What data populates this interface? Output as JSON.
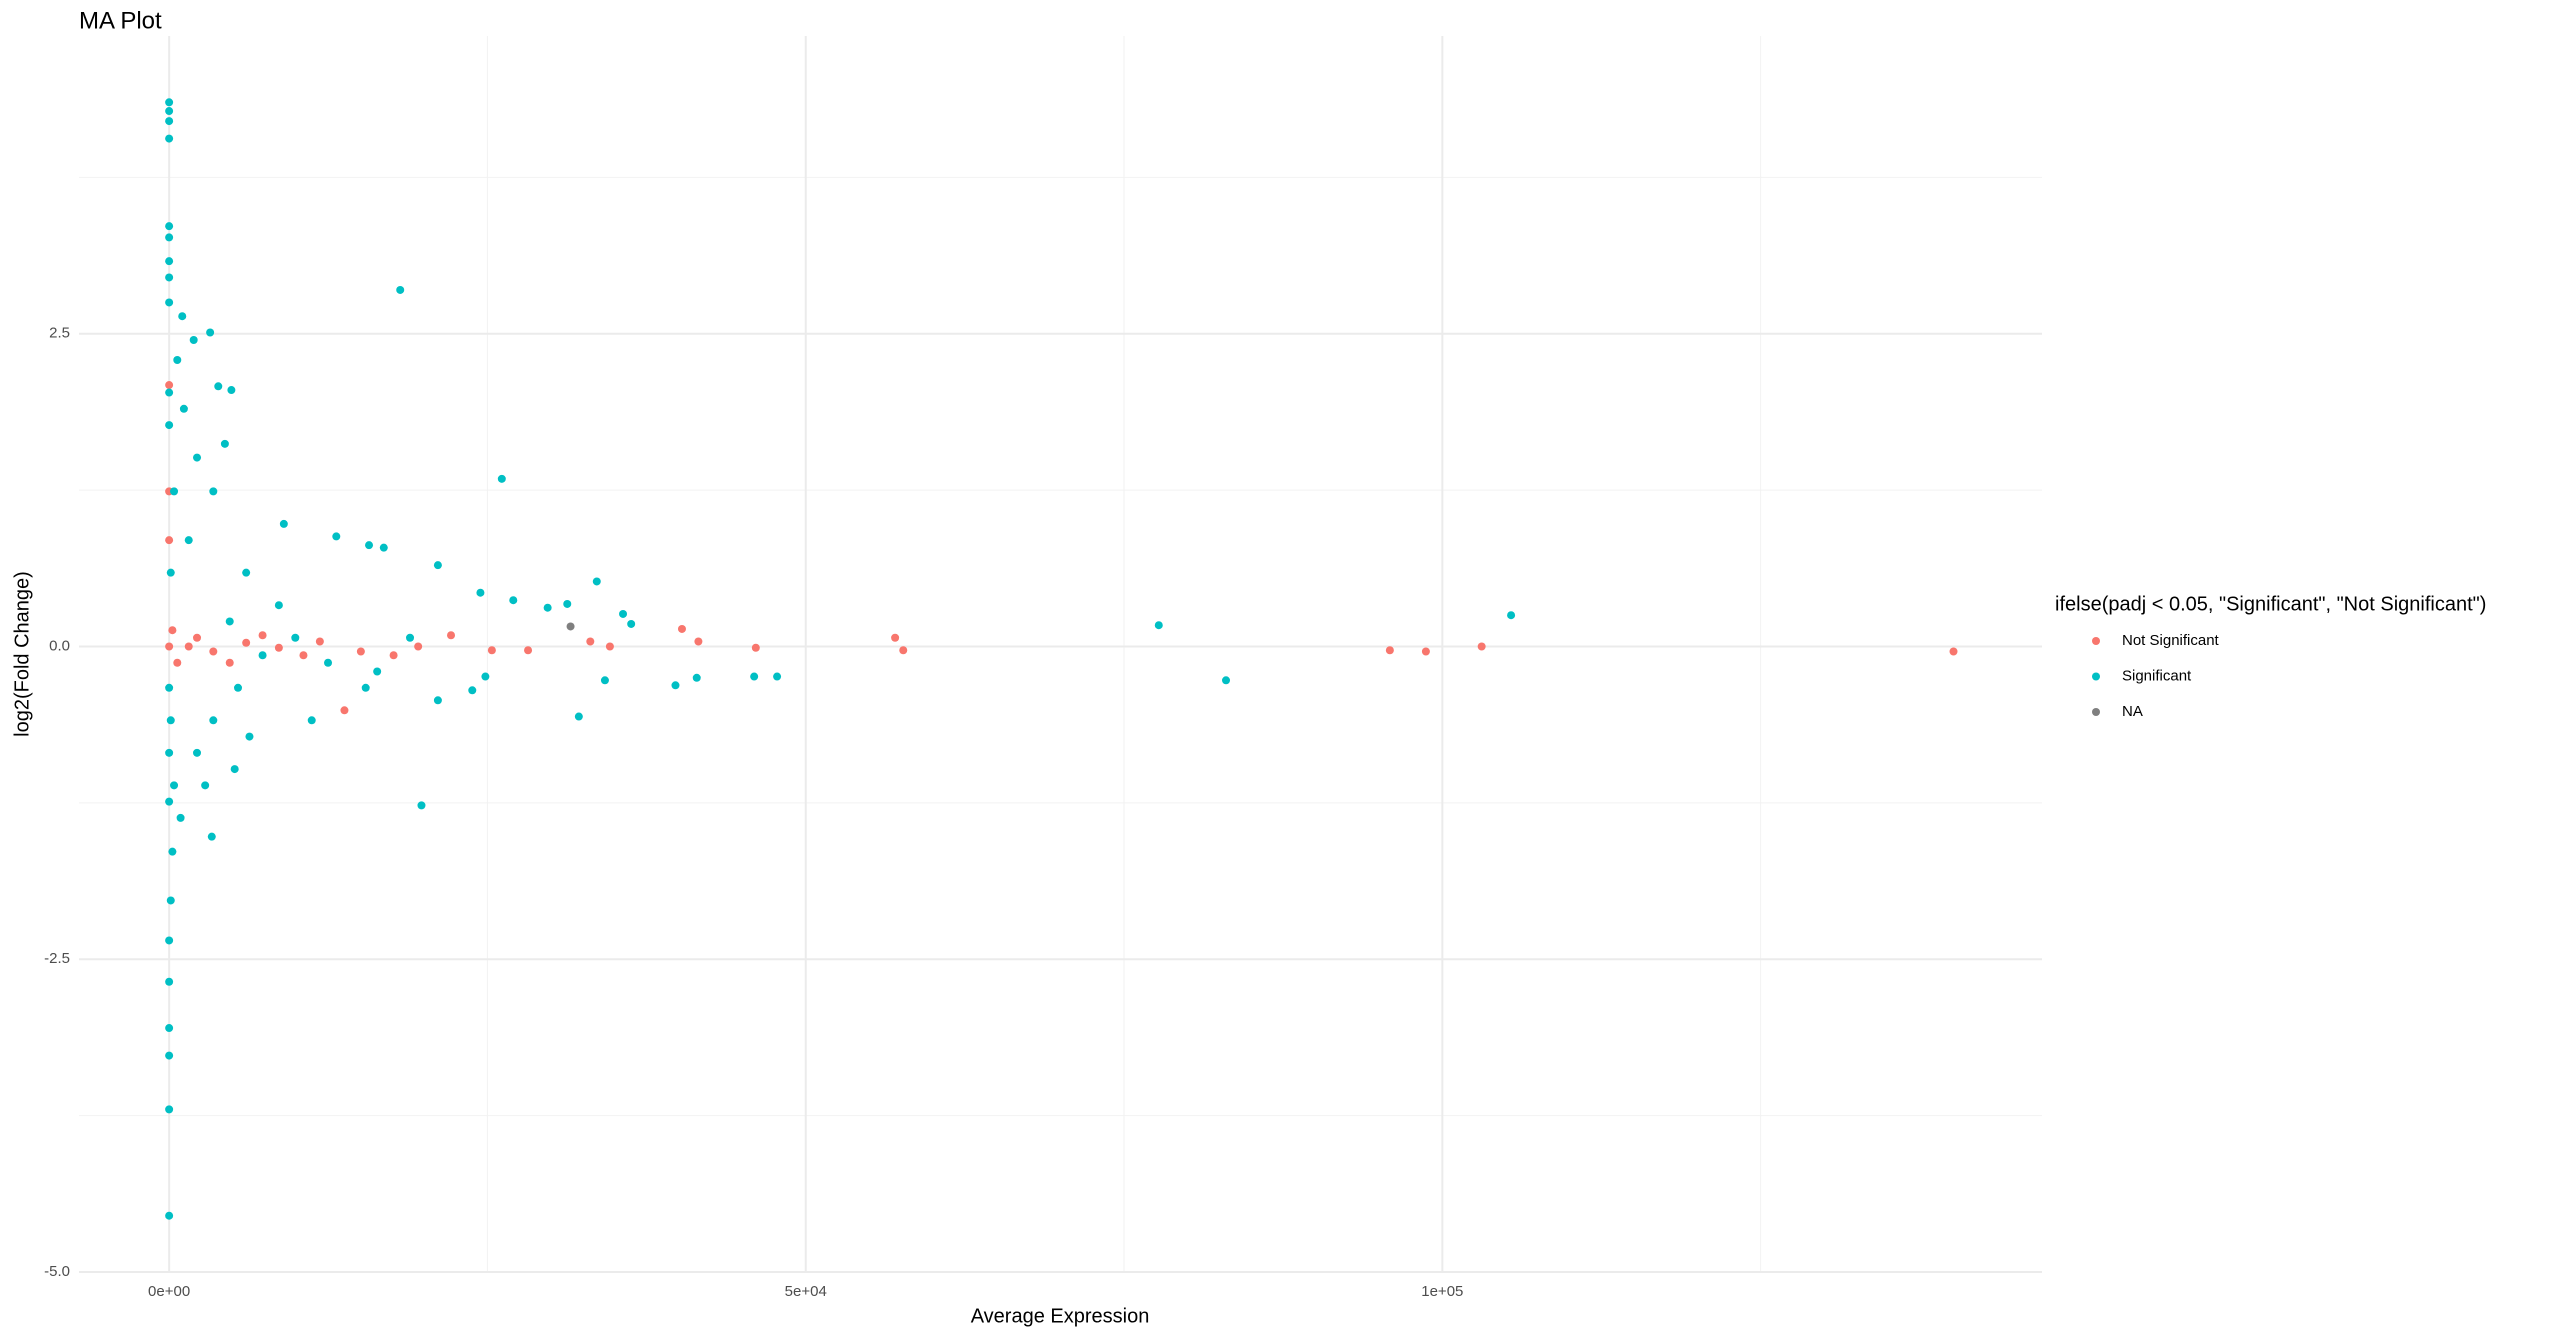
{
  "chart_data": {
    "type": "scatter",
    "title": "MA Plot",
    "x_label": "Average Expression",
    "y_label": "log2(Fold Change)",
    "legend_title": "ifelse(padj < 0.05, \"Significant\", \"Not Significant\")",
    "legend_position": "right",
    "xlim": [
      -7079,
      147100
    ],
    "ylim": [
      -5.0,
      4.88
    ],
    "xticks": [
      {
        "value": 0,
        "label": "0e+00"
      },
      {
        "value": 50000,
        "label": "5e+04"
      },
      {
        "value": 100000,
        "label": "1e+05"
      }
    ],
    "yticks": [
      {
        "value": -5.0,
        "label": "-5.0"
      },
      {
        "value": -2.5,
        "label": "-2.5"
      },
      {
        "value": 0.0,
        "label": "0.0"
      },
      {
        "value": 2.5,
        "label": "2.5"
      }
    ],
    "xminor": [
      25000,
      75000,
      125000
    ],
    "yminor": [
      -3.75,
      -1.25,
      1.25,
      3.75
    ],
    "grid": true,
    "series": [
      {
        "name": "Not Significant",
        "color": "#F8766D",
        "x": [
          0,
          0,
          0,
          0,
          1540,
          3470,
          6050,
          8620,
          11840,
          13770,
          15060,
          17630,
          19560,
          22140,
          25350,
          28190,
          33080,
          34620,
          40280,
          41570,
          46080,
          57020,
          57660,
          95880,
          98710,
          103090,
          140150,
          4760,
          7340,
          10550,
          2190,
          640,
          257
        ],
        "values": [
          0,
          2.09,
          0.85,
          1.24,
          0,
          -0.04,
          0.03,
          -0.01,
          0.04,
          -0.51,
          -0.04,
          -0.07,
          0,
          0.09,
          -0.03,
          -0.03,
          0.04,
          0,
          0.14,
          0.04,
          -0.01,
          0.07,
          -0.03,
          -0.03,
          -0.04,
          0,
          -0.04,
          -0.13,
          0.09,
          -0.07,
          0.07,
          -0.13,
          0.13
        ]
      },
      {
        "name": "Significant",
        "color": "#00BFC4",
        "x": [
          0,
          0,
          0,
          0,
          0,
          0,
          0,
          0,
          0,
          0,
          0,
          0,
          0,
          0,
          0,
          18150,
          26130,
          1030,
          1930,
          3220,
          3860,
          4890,
          4380,
          9010,
          13130,
          15700,
          16860,
          21110,
          19820,
          3350,
          32180,
          33590,
          31270,
          29730,
          35650,
          36290,
          34230,
          39770,
          41440,
          45950,
          47750,
          77730,
          83010,
          105400,
          27030,
          24450,
          24840,
          21110,
          23810,
          15440,
          11200,
          6310,
          5150,
          2830,
          900,
          2190,
          3470,
          5410,
          7340,
          8620,
          6050,
          3470,
          2190,
          1160,
          640,
          386,
          129,
          129,
          257,
          129,
          386,
          1540,
          4760,
          9910,
          12480,
          18920,
          16340,
          0,
          0,
          0,
          0,
          0
        ],
        "values": [
          4.35,
          4.28,
          4.2,
          4.06,
          3.36,
          3.27,
          3.08,
          2.95,
          2.75,
          -3.7,
          -4.55,
          -3.05,
          -3.27,
          -2.68,
          -2.35,
          2.85,
          1.34,
          2.64,
          2.45,
          2.51,
          2.08,
          2.05,
          1.62,
          0.98,
          0.88,
          0.81,
          0.79,
          0.65,
          -1.27,
          -1.52,
          -0.56,
          0.52,
          0.34,
          0.31,
          0.26,
          0.18,
          -0.27,
          -0.31,
          -0.25,
          -0.24,
          -0.24,
          0.17,
          -0.27,
          0.25,
          0.37,
          0.43,
          -0.24,
          -0.43,
          -0.35,
          -0.33,
          -0.59,
          -0.72,
          -0.98,
          -1.11,
          -1.37,
          -0.85,
          -0.59,
          -0.33,
          -0.07,
          0.33,
          0.59,
          1.24,
          1.51,
          1.9,
          2.29,
          1.24,
          0.59,
          -0.59,
          -1.64,
          -2.03,
          -1.11,
          0.85,
          0.2,
          0.07,
          -0.13,
          0.07,
          -0.2,
          2.03,
          1.77,
          -0.33,
          -0.85,
          -1.24
        ]
      },
      {
        "name": "NA",
        "color": "#7F7F7F",
        "x": [
          31530
        ],
        "values": [
          0.16
        ]
      }
    ]
  }
}
